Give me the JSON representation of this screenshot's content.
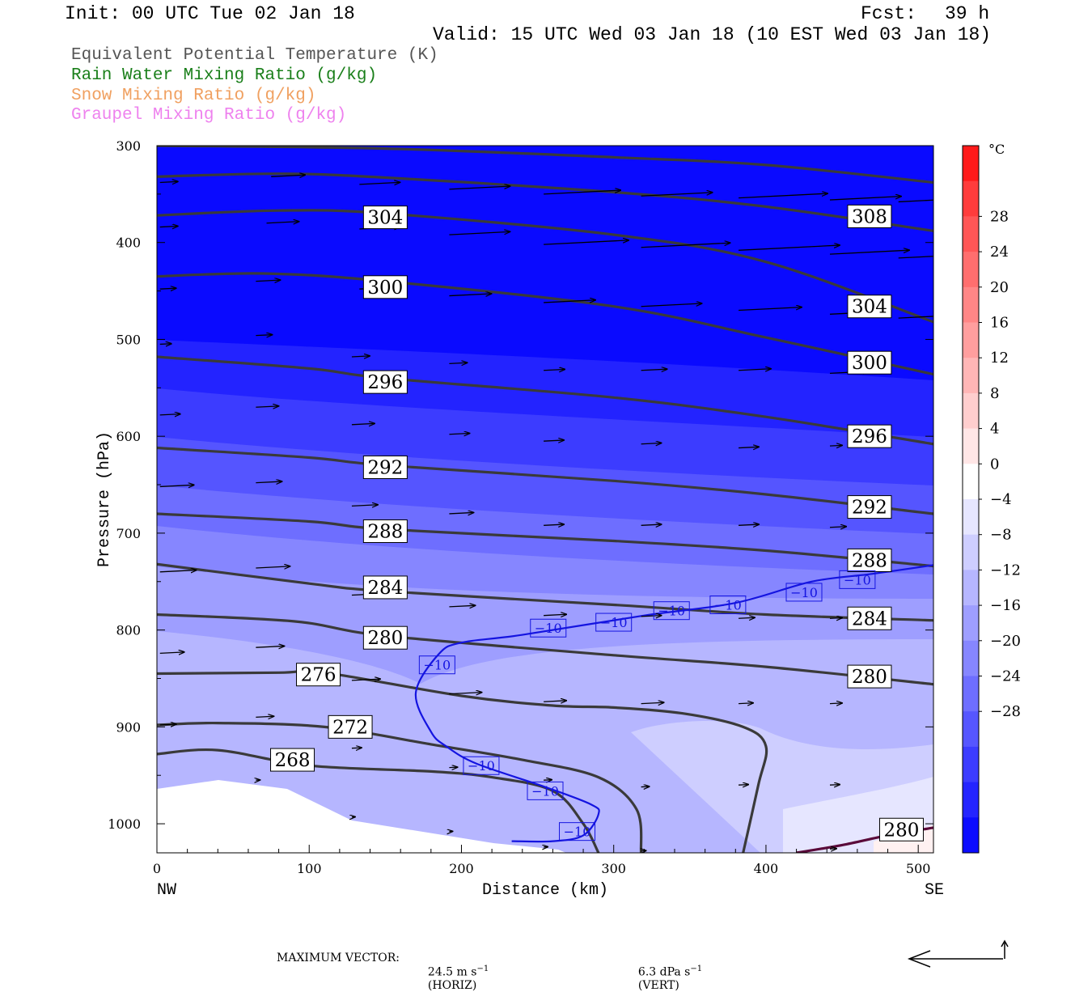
{
  "header": {
    "init": "Init: 00 UTC Tue 02 Jan 18",
    "fcst_label": "Fcst:",
    "fcst_value": "39 h",
    "valid": "Valid: 15 UTC Wed 03 Jan 18 (10 EST Wed 03 Jan 18)"
  },
  "legend": [
    {
      "text": "Equivalent Potential Temperature (K)",
      "color": "#555555"
    },
    {
      "text": "Rain Water Mixing Ratio (g/kg)",
      "color": "#1a7f1a"
    },
    {
      "text": "Snow Mixing Ratio (g/kg)",
      "color": "#f0a060"
    },
    {
      "text": "Graupel Mixing Ratio (g/kg)",
      "color": "#ee82ee"
    }
  ],
  "footer": {
    "max_label": "MAXIMUM VECTOR:",
    "horiz_num": "24.5 m s",
    "horiz_exp": "−1",
    "horiz_unit": "(HORIZ)",
    "vert_num": "6.3 dPa s",
    "vert_exp": "−1",
    "vert_unit": "(VERT)"
  },
  "chart_data": {
    "type": "cross-section",
    "xlabel": "Distance (km)",
    "ylabel": "Pressure (hPa)",
    "xlim": [
      0,
      510
    ],
    "ylim": [
      300,
      1030
    ],
    "x_ticks": [
      0,
      100,
      200,
      300,
      400,
      500
    ],
    "y_ticks": [
      300,
      400,
      500,
      600,
      700,
      800,
      900,
      1000
    ],
    "x_end_labels": {
      "left": "NW",
      "right": "SE"
    },
    "colorbar": {
      "unit": "°C",
      "ticks": [
        "28",
        "24",
        "20",
        "16",
        "12",
        "8",
        "4",
        "0",
        "−4",
        "−8",
        "−12",
        "−16",
        "−20",
        "−24",
        "−28"
      ],
      "colors": [
        "#ff1a1a",
        "#ff3c3c",
        "#ff5656",
        "#ff6e6e",
        "#ff8686",
        "#ff9e9e",
        "#ffb6b6",
        "#ffcece",
        "#ffe6e6",
        "#ffffff",
        "#e6e6ff",
        "#ceceff",
        "#b6b6ff",
        "#9e9eff",
        "#8686ff",
        "#6e6eff",
        "#5656ff",
        "#3c3cff",
        "#2424ff",
        "#0c0cff"
      ]
    },
    "theta_e_contours": [
      {
        "label": "308",
        "pts": [
          [
            0,
            300
          ],
          [
            150,
            303
          ],
          [
            300,
            312
          ],
          [
            400,
            320
          ],
          [
            510,
            338
          ]
        ],
        "label_at": [
          468,
          373
        ]
      },
      {
        "label": "304",
        "pts": [
          [
            0,
            332
          ],
          [
            80,
            329
          ],
          [
            150,
            333
          ],
          [
            300,
            348
          ],
          [
            400,
            363
          ],
          [
            510,
            388
          ]
        ],
        "label_at": [
          150,
          374
        ]
      },
      {
        "label": "304",
        "pts": [
          [
            0,
            372
          ],
          [
            80,
            367
          ],
          [
            150,
            370
          ],
          [
            300,
            392
          ],
          [
            400,
            420
          ],
          [
            510,
            482
          ]
        ],
        "label_at": [
          468,
          466
        ]
      },
      {
        "label": "300",
        "pts": [
          [
            0,
            435
          ],
          [
            70,
            432
          ],
          [
            150,
            440
          ],
          [
            300,
            466
          ],
          [
            400,
            498
          ],
          [
            510,
            536
          ]
        ],
        "label_at": [
          150,
          446
        ]
      },
      {
        "label": "300",
        "pts": [],
        "label_at": [
          468,
          524
        ]
      },
      {
        "label": "296",
        "pts": [
          [
            0,
            518
          ],
          [
            100,
            530
          ],
          [
            150,
            540
          ],
          [
            300,
            560
          ],
          [
            400,
            580
          ],
          [
            510,
            608
          ]
        ],
        "label_at": [
          150,
          544
        ]
      },
      {
        "label": "296",
        "pts": [],
        "label_at": [
          468,
          600
        ]
      },
      {
        "label": "292",
        "pts": [
          [
            0,
            612
          ],
          [
            100,
            622
          ],
          [
            150,
            630
          ],
          [
            300,
            646
          ],
          [
            400,
            660
          ],
          [
            510,
            680
          ]
        ],
        "label_at": [
          150,
          632
        ]
      },
      {
        "label": "292",
        "pts": [],
        "label_at": [
          468,
          673
        ]
      },
      {
        "label": "288",
        "pts": [
          [
            0,
            680
          ],
          [
            100,
            688
          ],
          [
            150,
            696
          ],
          [
            300,
            708
          ],
          [
            400,
            718
          ],
          [
            510,
            734
          ]
        ],
        "label_at": [
          150,
          698
        ]
      },
      {
        "label": "288",
        "pts": [],
        "label_at": [
          468,
          728
        ]
      },
      {
        "label": "284",
        "pts": [
          [
            0,
            732
          ],
          [
            100,
            752
          ],
          [
            150,
            760
          ],
          [
            300,
            774
          ],
          [
            400,
            784
          ],
          [
            510,
            790
          ]
        ],
        "label_at": [
          150,
          756
        ]
      },
      {
        "label": "284",
        "pts": [],
        "label_at": [
          468,
          788
        ]
      },
      {
        "label": "280",
        "pts": [
          [
            0,
            784
          ],
          [
            90,
            791
          ],
          [
            150,
            806
          ],
          [
            300,
            826
          ],
          [
            400,
            838
          ],
          [
            510,
            856
          ]
        ],
        "label_at": [
          150,
          808
        ]
      },
      {
        "label": "280",
        "pts": [],
        "label_at": [
          468,
          848
        ]
      },
      {
        "label": "276",
        "pts": [
          [
            0,
            845
          ],
          [
            80,
            844
          ],
          [
            110,
            844
          ],
          [
            200,
            868
          ],
          [
            260,
            878
          ],
          [
            300,
            880
          ],
          [
            345,
            886
          ],
          [
            385,
            900
          ],
          [
            400,
            920
          ],
          [
            395,
            960
          ],
          [
            385,
            1030
          ]
        ],
        "label_at": [
          106,
          846
        ]
      },
      {
        "label": "272",
        "pts": [
          [
            0,
            898
          ],
          [
            40,
            896
          ],
          [
            110,
            900
          ],
          [
            180,
            918
          ],
          [
            240,
            934
          ],
          [
            290,
            952
          ],
          [
            315,
            985
          ],
          [
            318,
            1030
          ]
        ],
        "label_at": [
          127,
          900
        ]
      },
      {
        "label": "268",
        "pts": [
          [
            0,
            928
          ],
          [
            40,
            924
          ],
          [
            100,
            940
          ],
          [
            180,
            946
          ],
          [
            220,
            952
          ],
          [
            260,
            966
          ],
          [
            280,
            1000
          ],
          [
            290,
            1030
          ]
        ],
        "label_at": [
          89,
          934
        ]
      },
      {
        "label": "280",
        "pts": [
          [
            420,
            1030
          ],
          [
            450,
            1022
          ],
          [
            480,
            1012
          ],
          [
            510,
            1004
          ]
        ],
        "label_at": [
          489,
          1006
        ]
      }
    ],
    "minus10_isotherm": {
      "label": "−10",
      "pts": [
        [
          510,
          733
        ],
        [
          470,
          742
        ],
        [
          430,
          750
        ],
        [
          380,
          772
        ],
        [
          320,
          785
        ],
        [
          240,
          805
        ],
        [
          200,
          813
        ],
        [
          185,
          825
        ],
        [
          170,
          865
        ],
        [
          180,
          905
        ],
        [
          190,
          920
        ],
        [
          210,
          938
        ],
        [
          255,
          962
        ],
        [
          285,
          980
        ],
        [
          290,
          990
        ],
        [
          280,
          1012
        ],
        [
          260,
          1018
        ],
        [
          233,
          1018
        ]
      ],
      "labels_at": [
        [
          460,
          748
        ],
        [
          425,
          761
        ],
        [
          375,
          774
        ],
        [
          338,
          780
        ],
        [
          300,
          792
        ],
        [
          257,
          798
        ],
        [
          184,
          836
        ],
        [
          213,
          940
        ],
        [
          255,
          966
        ],
        [
          276,
          1008
        ]
      ]
    },
    "wind_vectors": [
      {
        "x": 2,
        "p": 338,
        "len": 22
      },
      {
        "x": 75,
        "p": 332,
        "len": 42
      },
      {
        "x": 133,
        "p": 340,
        "len": 50
      },
      {
        "x": 192,
        "p": 345,
        "len": 75
      },
      {
        "x": 254,
        "p": 350,
        "len": 95
      },
      {
        "x": 318,
        "p": 352,
        "len": 88
      },
      {
        "x": 382,
        "p": 354,
        "len": 110
      },
      {
        "x": 442,
        "p": 356,
        "len": 88
      },
      {
        "x": 487,
        "p": 358,
        "len": 110
      },
      {
        "x": 2,
        "p": 384,
        "len": 22
      },
      {
        "x": 72,
        "p": 380,
        "len": 40
      },
      {
        "x": 133,
        "p": 386,
        "len": 50
      },
      {
        "x": 192,
        "p": 392,
        "len": 75
      },
      {
        "x": 254,
        "p": 402,
        "len": 105
      },
      {
        "x": 318,
        "p": 405,
        "len": 110
      },
      {
        "x": 382,
        "p": 408,
        "len": 125
      },
      {
        "x": 442,
        "p": 412,
        "len": 98
      },
      {
        "x": 487,
        "p": 416,
        "len": 115
      },
      {
        "x": 2,
        "p": 448,
        "len": 20
      },
      {
        "x": 65,
        "p": 440,
        "len": 30
      },
      {
        "x": 133,
        "p": 448,
        "len": 32
      },
      {
        "x": 192,
        "p": 455,
        "len": 52
      },
      {
        "x": 254,
        "p": 462,
        "len": 64
      },
      {
        "x": 318,
        "p": 466,
        "len": 75
      },
      {
        "x": 382,
        "p": 470,
        "len": 78
      },
      {
        "x": 442,
        "p": 474,
        "len": 55
      },
      {
        "x": 487,
        "p": 478,
        "len": 80
      },
      {
        "x": 2,
        "p": 505,
        "len": 14
      },
      {
        "x": 65,
        "p": 496,
        "len": 20
      },
      {
        "x": 128,
        "p": 518,
        "len": 22
      },
      {
        "x": 192,
        "p": 525,
        "len": 22
      },
      {
        "x": 254,
        "p": 532,
        "len": 26
      },
      {
        "x": 318,
        "p": 532,
        "len": 32
      },
      {
        "x": 382,
        "p": 532,
        "len": 40
      },
      {
        "x": 442,
        "p": 535,
        "len": 48
      },
      {
        "x": 2,
        "p": 578,
        "len": 25
      },
      {
        "x": 65,
        "p": 570,
        "len": 28
      },
      {
        "x": 128,
        "p": 588,
        "len": 28
      },
      {
        "x": 192,
        "p": 598,
        "len": 25
      },
      {
        "x": 254,
        "p": 605,
        "len": 25
      },
      {
        "x": 318,
        "p": 608,
        "len": 25
      },
      {
        "x": 382,
        "p": 612,
        "len": 25
      },
      {
        "x": 442,
        "p": 610,
        "len": 15
      },
      {
        "x": 2,
        "p": 652,
        "len": 42
      },
      {
        "x": 65,
        "p": 648,
        "len": 32
      },
      {
        "x": 128,
        "p": 672,
        "len": 32
      },
      {
        "x": 192,
        "p": 680,
        "len": 30
      },
      {
        "x": 254,
        "p": 692,
        "len": 25
      },
      {
        "x": 318,
        "p": 692,
        "len": 25
      },
      {
        "x": 382,
        "p": 692,
        "len": 25
      },
      {
        "x": 442,
        "p": 694,
        "len": 20
      },
      {
        "x": 2,
        "p": 740,
        "len": 45
      },
      {
        "x": 65,
        "p": 736,
        "len": 42
      },
      {
        "x": 128,
        "p": 764,
        "len": 32
      },
      {
        "x": 192,
        "p": 776,
        "len": 32
      },
      {
        "x": 254,
        "p": 785,
        "len": 28
      },
      {
        "x": 318,
        "p": 786,
        "len": 25
      },
      {
        "x": 382,
        "p": 788,
        "len": 20
      },
      {
        "x": 442,
        "p": 788,
        "len": 15
      },
      {
        "x": 2,
        "p": 824,
        "len": 30
      },
      {
        "x": 65,
        "p": 818,
        "len": 35
      },
      {
        "x": 128,
        "p": 852,
        "len": 35
      },
      {
        "x": 192,
        "p": 866,
        "len": 40
      },
      {
        "x": 254,
        "p": 874,
        "len": 28
      },
      {
        "x": 318,
        "p": 876,
        "len": 28
      },
      {
        "x": 382,
        "p": 876,
        "len": 18
      },
      {
        "x": 442,
        "p": 876,
        "len": 15
      },
      {
        "x": 2,
        "p": 898,
        "len": 20
      },
      {
        "x": 65,
        "p": 890,
        "len": 22
      },
      {
        "x": 128,
        "p": 922,
        "len": 12
      },
      {
        "x": 192,
        "p": 942,
        "len": 10
      },
      {
        "x": 254,
        "p": 955,
        "len": 10
      },
      {
        "x": 318,
        "p": 962,
        "len": 10
      },
      {
        "x": 382,
        "p": 960,
        "len": 12
      },
      {
        "x": 442,
        "p": 960,
        "len": 12
      },
      {
        "x": 65,
        "p": 955,
        "len": 5
      },
      {
        "x": 128,
        "p": 993,
        "len": 4
      },
      {
        "x": 192,
        "p": 1008,
        "len": 4
      },
      {
        "x": 254,
        "p": 1024,
        "len": 5
      },
      {
        "x": 318,
        "p": 1028,
        "len": 6
      },
      {
        "x": 442,
        "p": 1026,
        "len": 8
      }
    ]
  }
}
